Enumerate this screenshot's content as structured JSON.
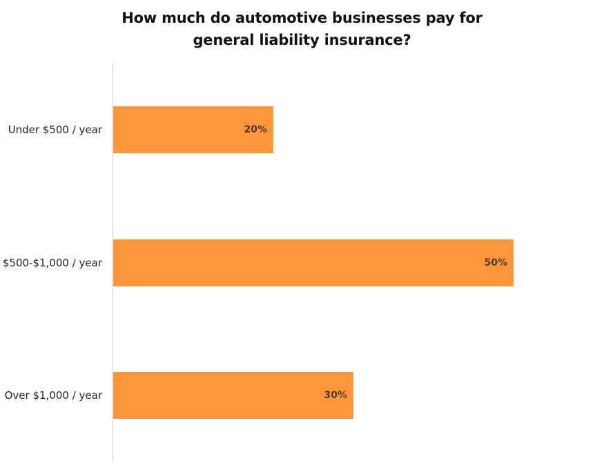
{
  "title": {
    "line1": "How much do automotive businesses pay for",
    "line2": "general liability insurance?"
  },
  "colors": {
    "bar": "#FF973A",
    "value_label": "#4a3b2c",
    "axis": "#d4d4d4"
  },
  "bars": [
    {
      "label": "Under $500 / year",
      "value": 20,
      "value_label": "20%"
    },
    {
      "label": "$500-$1,000 / year",
      "value": 50,
      "value_label": "50%"
    },
    {
      "label": "Over $1,000 / year",
      "value": 30,
      "value_label": "30%"
    }
  ],
  "chart_data": {
    "type": "bar",
    "orientation": "horizontal",
    "title": "How much do automotive businesses pay for general liability insurance?",
    "categories": [
      "Under $500 / year",
      "$500-$1,000 / year",
      "Over $1,000 / year"
    ],
    "values": [
      20,
      50,
      30
    ],
    "value_labels": [
      "20%",
      "50%",
      "30%"
    ],
    "unit": "%",
    "xlabel": "",
    "ylabel": "",
    "grid": false,
    "legend": null
  }
}
